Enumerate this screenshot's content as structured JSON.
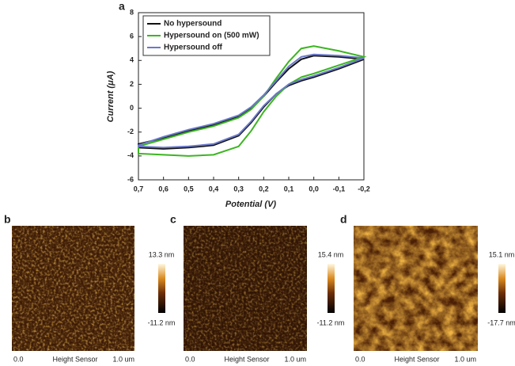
{
  "chart_data": {
    "type": "line",
    "panel_label": "a",
    "x_label": "Potential (V)",
    "y_label": "Current (μA)",
    "x": [
      0.7,
      0.6,
      0.5,
      0.4,
      0.3,
      0.25,
      0.2,
      0.15,
      0.1,
      0.05,
      0,
      -0.1,
      -0.2,
      -0.1,
      0,
      0.05,
      0.1,
      0.15,
      0.2,
      0.25,
      0.3,
      0.4,
      0.5,
      0.6,
      0.7
    ],
    "series": [
      {
        "name": "No hypersound",
        "color": "#111111",
        "values": [
          -3.0,
          -2.5,
          -1.9,
          -1.4,
          -0.7,
          0.0,
          1.0,
          2.2,
          3.3,
          4.1,
          4.4,
          4.3,
          4.1,
          3.3,
          2.6,
          2.3,
          1.9,
          1.2,
          0.1,
          -1.2,
          -2.3,
          -3.1,
          -3.3,
          -3.4,
          -3.3
        ]
      },
      {
        "name": "Hypersound on (500 mW)",
        "color": "#3cb521",
        "values": [
          -3.2,
          -2.6,
          -2.0,
          -1.5,
          -0.8,
          -0.1,
          1.0,
          2.5,
          3.9,
          5.0,
          5.2,
          4.8,
          4.3,
          3.6,
          2.9,
          2.6,
          2.0,
          1.0,
          -0.3,
          -1.9,
          -3.2,
          -3.9,
          -4.0,
          -3.9,
          -3.8
        ]
      },
      {
        "name": "Hypersound off",
        "color": "#6a78c8",
        "values": [
          -3.1,
          -2.4,
          -1.8,
          -1.3,
          -0.6,
          0.1,
          1.1,
          2.3,
          3.5,
          4.3,
          4.5,
          4.4,
          4.2,
          3.4,
          2.7,
          2.4,
          2.0,
          1.2,
          0.2,
          -1.1,
          -2.2,
          -3.0,
          -3.2,
          -3.3,
          -3.2
        ]
      }
    ],
    "xlim": [
      0.7,
      -0.2
    ],
    "xticks": [
      {
        "value": 0.7,
        "label": "0,7"
      },
      {
        "value": 0.6,
        "label": "0,6"
      },
      {
        "value": 0.5,
        "label": "0,5"
      },
      {
        "value": 0.4,
        "label": "0,4"
      },
      {
        "value": 0.3,
        "label": "0,3"
      },
      {
        "value": 0.2,
        "label": "0,2"
      },
      {
        "value": 0.1,
        "label": "0,1"
      },
      {
        "value": 0,
        "label": "0,0"
      },
      {
        "value": -0.1,
        "label": "-0,1"
      },
      {
        "value": -0.2,
        "label": "-0,2"
      }
    ],
    "ylim": [
      -6,
      8
    ],
    "yticks": [
      -6,
      -4,
      -2,
      0,
      2,
      4,
      6,
      8
    ],
    "legend": "upper-left"
  },
  "afm_panels": [
    {
      "label": "b",
      "scale_max": "13.3 nm",
      "scale_min": "-11.2 nm",
      "x_start": "0.0",
      "x_label": "Height Sensor",
      "x_end": "1.0 um"
    },
    {
      "label": "c",
      "scale_max": "15.4 nm",
      "scale_min": "-11.2 nm",
      "x_start": "0.0",
      "x_label": "Height Sensor",
      "x_end": "1.0 um"
    },
    {
      "label": "d",
      "scale_max": "15.1 nm",
      "scale_min": "-17.7 nm",
      "x_start": "0.0",
      "x_label": "Height Sensor",
      "x_end": "1.0 um"
    }
  ]
}
